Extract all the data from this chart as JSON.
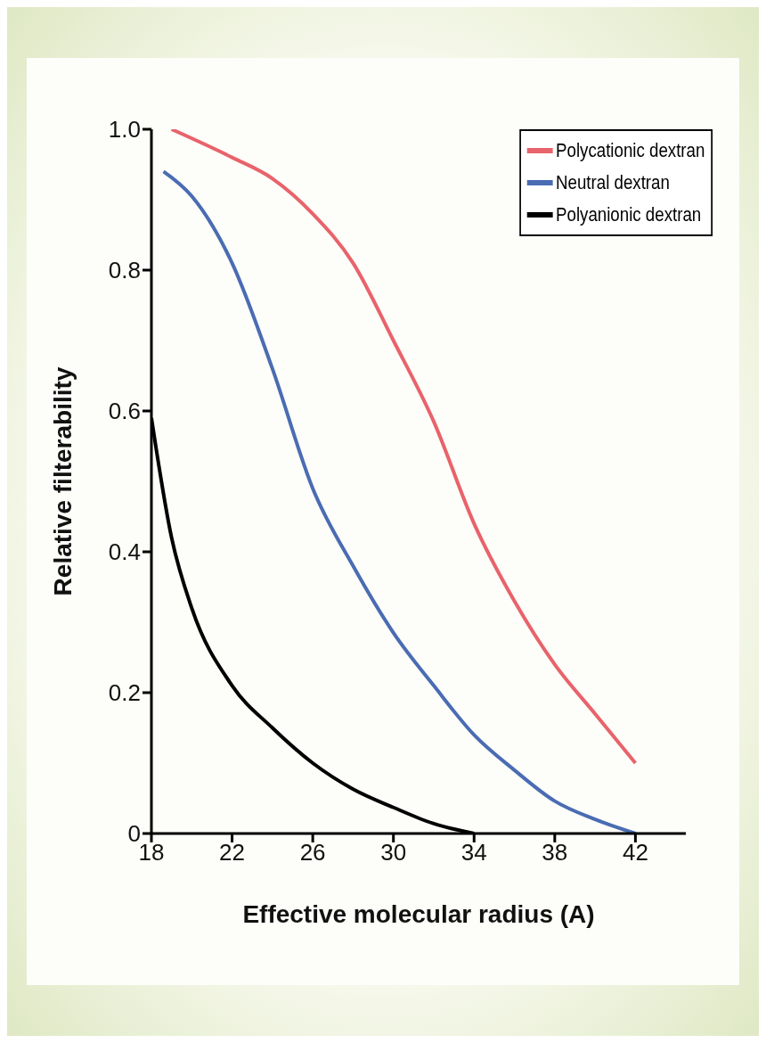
{
  "chart_data": {
    "type": "line",
    "xlabel": "Effective molecular radius (A)",
    "ylabel": "Relative filterability",
    "xlim": [
      18,
      44.5
    ],
    "xticks": [
      18,
      22,
      26,
      30,
      34,
      38,
      42
    ],
    "ylim": [
      0,
      1
    ],
    "yticks": [
      0,
      0.2,
      0.4,
      0.6,
      0.8,
      {
        "value": 1,
        "label": "1.0"
      }
    ],
    "grid": false,
    "legend": "top right",
    "marker": "none",
    "line_style": "solid",
    "series": [
      {
        "name": "Polycationic dextran",
        "color": "#e8636b",
        "x": [
          19,
          22,
          24,
          26,
          28,
          30,
          32,
          34,
          36,
          38,
          40,
          42
        ],
        "values": [
          1.0,
          0.96,
          0.93,
          0.88,
          0.81,
          0.7,
          0.585,
          0.44,
          0.33,
          0.24,
          0.17,
          0.1
        ]
      },
      {
        "name": "Neutral dextran",
        "color": "#4a6cb3",
        "x": [
          18.6,
          20,
          22,
          24,
          26,
          28,
          30,
          32,
          34,
          36,
          38,
          40,
          42
        ],
        "values": [
          0.94,
          0.905,
          0.81,
          0.66,
          0.49,
          0.38,
          0.285,
          0.21,
          0.14,
          0.09,
          0.046,
          0.02,
          0
        ]
      },
      {
        "name": "Polyanionic dextran",
        "color": "#000000",
        "x": [
          18,
          19,
          20,
          22,
          24,
          26,
          28,
          30,
          32,
          34
        ],
        "values": [
          0.59,
          0.42,
          0.32,
          0.21,
          0.15,
          0.1,
          0.063,
          0.037,
          0.014,
          0
        ]
      }
    ]
  }
}
